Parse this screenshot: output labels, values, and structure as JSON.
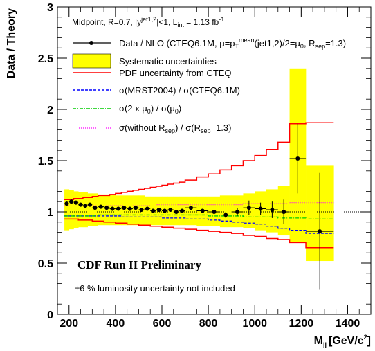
{
  "chart_data": {
    "type": "line",
    "ylabel": "Data / Theory",
    "xlabel_main": "M",
    "xlabel_sub": "jj",
    "xlabel_unit": "[GeV/c",
    "xlabel_sup": "2",
    "xlabel_close": "]",
    "xlim": [
      150,
      1500
    ],
    "ylim": [
      0,
      3
    ],
    "x_ticks": [
      200,
      400,
      600,
      800,
      1000,
      1200,
      1400
    ],
    "y_ticks": [
      0,
      0.5,
      1,
      1.5,
      2,
      2.5,
      3
    ],
    "x_tick_labels": [
      "200",
      "400",
      "600",
      "800",
      "1000",
      "1200",
      "1400"
    ],
    "y_tick_labels": [
      "0",
      "0.5",
      "1",
      "1.5",
      "2",
      "2.5",
      "3"
    ],
    "reference_line_y": 1,
    "header": {
      "prefix": "Midpoint, R=0.7, |y",
      "sup": "jet1,2",
      "middle": "|<1, L",
      "sub": "int",
      "suffix": " = 1.13 fb",
      "sup2": "-1"
    },
    "legend": [
      {
        "key": "data",
        "text": "Data / NLO (CTEQ6.1M, μ=p",
        "sub": "T",
        "sup": "mean",
        "rest": "(jet1,2)/2=μ",
        "sub2": "0",
        "rest2": ", R",
        "sub3": "sep",
        "rest3": "=1.3)"
      },
      {
        "key": "syst",
        "text": "Systematic uncertainties"
      },
      {
        "key": "pdf",
        "text": "PDF uncertainty from CTEQ"
      },
      {
        "key": "mrst",
        "text": "σ(MRST2004) / σ(CTEQ6.1M)"
      },
      {
        "key": "scale",
        "text": "σ(2 x μ",
        "sub": "0",
        "rest": ") / σ(μ",
        "sub2": "0",
        "rest2": ")"
      },
      {
        "key": "rsep",
        "text": "σ(without R",
        "sub": "sep",
        "rest": ") / σ(R",
        "sub2": "sep",
        "rest2": "=1.3)"
      }
    ],
    "annotation_prelim": "CDF Run II Preliminary",
    "annotation_lumi": "±6 % luminosity uncertainty not included",
    "bin_edges": [
      180,
      200,
      220,
      240,
      260,
      280,
      300,
      325,
      350,
      375,
      400,
      425,
      450,
      475,
      500,
      525,
      550,
      575,
      600,
      625,
      650,
      675,
      700,
      750,
      800,
      850,
      900,
      950,
      1000,
      1050,
      1100,
      1150,
      1220,
      1340
    ],
    "data": {
      "x": [
        190,
        210,
        230,
        250,
        270,
        290,
        312,
        337,
        362,
        387,
        412,
        437,
        462,
        487,
        512,
        537,
        562,
        587,
        612,
        637,
        662,
        687,
        725,
        775,
        825,
        875,
        925,
        975,
        1025,
        1075,
        1125,
        1185,
        1280
      ],
      "y": [
        1.08,
        1.1,
        1.09,
        1.07,
        1.06,
        1.07,
        1.04,
        1.05,
        1.04,
        1.03,
        1.03,
        1.04,
        1.03,
        1.04,
        1.02,
        1.03,
        1.01,
        1.02,
        1.01,
        1.02,
        1.0,
        1.01,
        1.04,
        1.01,
        1.0,
        0.97,
        1.0,
        1.04,
        1.03,
        1.02,
        1.0,
        1.52,
        0.81
      ],
      "yerr": [
        0.02,
        0.02,
        0.02,
        0.02,
        0.02,
        0.02,
        0.02,
        0.02,
        0.02,
        0.02,
        0.02,
        0.02,
        0.02,
        0.02,
        0.02,
        0.02,
        0.02,
        0.02,
        0.02,
        0.02,
        0.02,
        0.02,
        0.02,
        0.02,
        0.03,
        0.03,
        0.04,
        0.07,
        0.06,
        0.08,
        0.12,
        0.34,
        0.57
      ]
    },
    "syst_upper": [
      1.22,
      1.21,
      1.2,
      1.19,
      1.19,
      1.18,
      1.18,
      1.17,
      1.17,
      1.17,
      1.16,
      1.16,
      1.16,
      1.16,
      1.16,
      1.15,
      1.15,
      1.15,
      1.15,
      1.15,
      1.15,
      1.15,
      1.15,
      1.15,
      1.15,
      1.16,
      1.16,
      1.18,
      1.2,
      1.22,
      1.25,
      2.4,
      1.45
    ],
    "syst_lower": [
      0.82,
      0.83,
      0.84,
      0.85,
      0.85,
      0.86,
      0.86,
      0.87,
      0.87,
      0.87,
      0.87,
      0.87,
      0.87,
      0.87,
      0.87,
      0.87,
      0.87,
      0.87,
      0.87,
      0.87,
      0.87,
      0.87,
      0.87,
      0.86,
      0.86,
      0.85,
      0.85,
      0.84,
      0.82,
      0.8,
      0.77,
      0.7,
      0.52
    ],
    "pdf_upper": [
      1.12,
      1.12,
      1.13,
      1.13,
      1.14,
      1.14,
      1.15,
      1.16,
      1.16,
      1.17,
      1.18,
      1.19,
      1.2,
      1.21,
      1.22,
      1.23,
      1.24,
      1.25,
      1.26,
      1.27,
      1.28,
      1.29,
      1.31,
      1.34,
      1.37,
      1.41,
      1.45,
      1.5,
      1.55,
      1.61,
      1.68,
      1.86,
      1.87
    ],
    "pdf_lower": [
      0.93,
      0.93,
      0.93,
      0.92,
      0.92,
      0.92,
      0.91,
      0.91,
      0.9,
      0.9,
      0.89,
      0.89,
      0.88,
      0.88,
      0.87,
      0.87,
      0.86,
      0.86,
      0.85,
      0.85,
      0.84,
      0.84,
      0.83,
      0.82,
      0.81,
      0.8,
      0.79,
      0.77,
      0.76,
      0.74,
      0.73,
      0.7,
      0.65
    ],
    "mrst": [
      0.96,
      0.96,
      0.96,
      0.96,
      0.96,
      0.96,
      0.96,
      0.96,
      0.96,
      0.96,
      0.96,
      0.95,
      0.95,
      0.95,
      0.95,
      0.95,
      0.95,
      0.95,
      0.94,
      0.94,
      0.94,
      0.94,
      0.93,
      0.93,
      0.92,
      0.91,
      0.9,
      0.89,
      0.88,
      0.86,
      0.84,
      0.82,
      0.79
    ],
    "scale": [
      0.96,
      0.96,
      0.96,
      0.96,
      0.96,
      0.96,
      0.96,
      0.97,
      0.97,
      0.97,
      0.97,
      0.97,
      0.97,
      0.97,
      0.97,
      0.97,
      0.97,
      0.97,
      0.97,
      0.97,
      0.97,
      0.97,
      0.97,
      0.97,
      0.96,
      0.96,
      0.96,
      0.95,
      0.95,
      0.95,
      0.94,
      0.94,
      0.93
    ],
    "rsep": [
      1.06,
      1.06,
      1.06,
      1.06,
      1.06,
      1.06,
      1.06,
      1.06,
      1.06,
      1.06,
      1.06,
      1.06,
      1.06,
      1.06,
      1.06,
      1.06,
      1.06,
      1.07,
      1.07,
      1.07,
      1.07,
      1.07,
      1.07,
      1.07,
      1.07,
      1.07,
      1.07,
      1.08,
      1.08,
      1.08,
      1.08,
      1.09,
      1.09
    ],
    "colors": {
      "syst_fill": "#ffff00",
      "pdf": "#ff0000",
      "mrst": "#0000ff",
      "scale": "#00cc00",
      "rsep": "#ff00ff",
      "data": "#000000"
    }
  }
}
